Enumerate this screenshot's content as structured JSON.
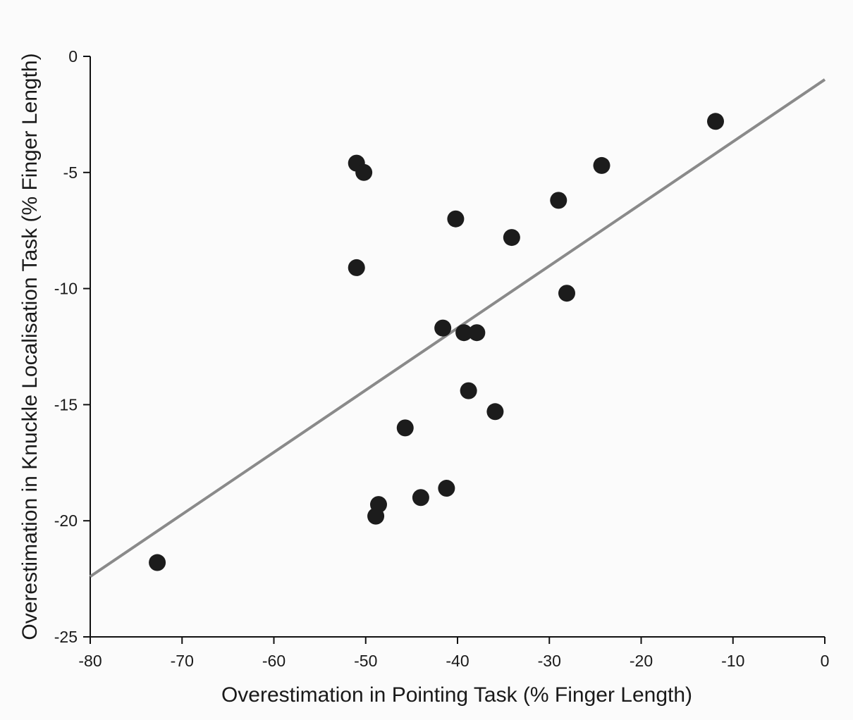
{
  "chart_data": {
    "type": "scatter",
    "title": "",
    "xlabel": "Overestimation in Pointing Task (% Finger Length)",
    "ylabel": "Overestimation in Knuckle Localisation Task (% Finger Length)",
    "xlim": [
      -80,
      0
    ],
    "ylim": [
      -25,
      0
    ],
    "xticks": [
      -80,
      -70,
      -60,
      -50,
      -40,
      -30,
      -20,
      -10,
      0
    ],
    "yticks": [
      0,
      -5,
      -10,
      -15,
      -20,
      -25
    ],
    "grid": false,
    "legend": "none",
    "colors": {
      "points": "#1c1c1c",
      "fit_line": "#8a8a8a",
      "axes": "#111111"
    },
    "points": [
      {
        "x": -72.7,
        "y": -21.8
      },
      {
        "x": -51.0,
        "y": -4.6
      },
      {
        "x": -50.2,
        "y": -5.0
      },
      {
        "x": -51.0,
        "y": -9.1
      },
      {
        "x": -40.2,
        "y": -7.0
      },
      {
        "x": -34.1,
        "y": -7.8
      },
      {
        "x": -29.0,
        "y": -6.2
      },
      {
        "x": -24.3,
        "y": -4.7
      },
      {
        "x": -11.9,
        "y": -2.8
      },
      {
        "x": -28.1,
        "y": -10.2
      },
      {
        "x": -41.6,
        "y": -11.7
      },
      {
        "x": -39.3,
        "y": -11.9
      },
      {
        "x": -37.9,
        "y": -11.9
      },
      {
        "x": -38.8,
        "y": -14.4
      },
      {
        "x": -35.9,
        "y": -15.3
      },
      {
        "x": -45.7,
        "y": -16.0
      },
      {
        "x": -41.2,
        "y": -18.6
      },
      {
        "x": -44.0,
        "y": -19.0
      },
      {
        "x": -48.6,
        "y": -19.3
      },
      {
        "x": -48.9,
        "y": -19.8
      }
    ],
    "fit_line": {
      "x": [
        -80,
        0
      ],
      "y": [
        -22.4,
        -1.0
      ]
    }
  }
}
